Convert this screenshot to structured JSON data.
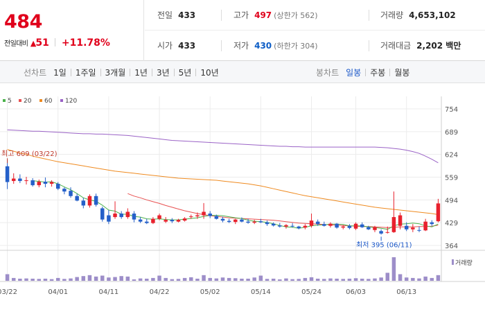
{
  "quote": {
    "price": "484",
    "change_label": "전일대비",
    "change_symbol": "▲",
    "change_value": "51",
    "change_percent": "+11.78%",
    "prev_close_label": "전일",
    "prev_close": "433",
    "high_label": "고가",
    "high": "497",
    "upper_limit": "(상한가 562)",
    "volume_label": "거래량",
    "volume": "4,653,102",
    "open_label": "시가",
    "open": "433",
    "low_label": "저가",
    "low": "430",
    "lower_limit": "(하한가 304)",
    "amount_label": "거래대금",
    "amount": "2,202 백만"
  },
  "tabs": {
    "line_head": "선차트",
    "line_ranges": [
      "1일",
      "1주일",
      "3개월",
      "1년",
      "3년",
      "5년",
      "10년"
    ],
    "candle_head": "봉차트",
    "candle_ranges": [
      "일봉",
      "주봉",
      "월봉"
    ],
    "candle_active": 0
  },
  "colors": {
    "up": "#e8212d",
    "down": "#2560c9",
    "ma5": "#4cb24c",
    "ma20": "#e85050",
    "ma60": "#ef8a1f",
    "ma120": "#9a62c6",
    "volume": "#9d8ec9"
  },
  "chart_data": {
    "type": "candlestick",
    "yticks": [
      "754",
      "689",
      "624",
      "559",
      "494",
      "429",
      "364"
    ],
    "ylim": [
      364,
      754
    ],
    "grid": true,
    "xticks": [
      {
        "label": "03/22",
        "i": 0
      },
      {
        "label": "04/01",
        "i": 8
      },
      {
        "label": "04/11",
        "i": 16
      },
      {
        "label": "04/22",
        "i": 24
      },
      {
        "label": "05/02",
        "i": 32
      },
      {
        "label": "05/14",
        "i": 40
      },
      {
        "label": "05/24",
        "i": 48
      },
      {
        "label": "06/03",
        "i": 55
      },
      {
        "label": "06/13",
        "i": 63
      }
    ],
    "legend": [
      "5",
      "20",
      "60",
      "120"
    ],
    "annotation_high": "최고 609 (03/22)",
    "annotation_low": "최저 395 (06/11)",
    "volume_label": "거래량",
    "candles": [
      [
        590,
        609,
        525,
        545
      ],
      [
        548,
        570,
        540,
        555
      ],
      [
        555,
        567,
        542,
        548
      ],
      [
        548,
        560,
        538,
        550
      ],
      [
        550,
        556,
        532,
        536
      ],
      [
        536,
        552,
        530,
        546
      ],
      [
        546,
        558,
        530,
        540
      ],
      [
        540,
        550,
        532,
        545
      ],
      [
        540,
        545,
        522,
        526
      ],
      [
        526,
        530,
        510,
        518
      ],
      [
        520,
        530,
        500,
        505
      ],
      [
        505,
        512,
        490,
        492
      ],
      [
        492,
        500,
        470,
        478
      ],
      [
        478,
        510,
        472,
        505
      ],
      [
        505,
        512,
        475,
        480
      ],
      [
        470,
        475,
        432,
        438
      ],
      [
        450,
        465,
        425,
        432
      ],
      [
        445,
        490,
        440,
        455
      ],
      [
        455,
        462,
        440,
        445
      ],
      [
        445,
        470,
        440,
        460
      ],
      [
        455,
        462,
        430,
        438
      ],
      [
        438,
        445,
        428,
        432
      ],
      [
        432,
        440,
        425,
        428
      ],
      [
        428,
        445,
        425,
        440
      ],
      [
        440,
        455,
        436,
        450
      ],
      [
        432,
        445,
        428,
        437
      ],
      [
        437,
        442,
        428,
        433
      ],
      [
        432,
        440,
        430,
        437
      ],
      [
        435,
        445,
        432,
        441
      ],
      [
        445,
        452,
        440,
        447
      ],
      [
        447,
        458,
        440,
        450
      ],
      [
        450,
        485,
        440,
        460
      ],
      [
        455,
        462,
        442,
        448
      ],
      [
        448,
        452,
        438,
        440
      ],
      [
        440,
        446,
        430,
        435
      ],
      [
        434,
        440,
        428,
        431
      ],
      [
        431,
        440,
        425,
        438
      ],
      [
        438,
        444,
        430,
        432
      ],
      [
        432,
        440,
        426,
        429
      ],
      [
        429,
        437,
        425,
        432
      ],
      [
        433,
        440,
        428,
        430
      ],
      [
        430,
        435,
        420,
        425
      ],
      [
        426,
        430,
        418,
        421
      ],
      [
        421,
        428,
        415,
        418
      ],
      [
        418,
        425,
        412,
        422
      ],
      [
        420,
        428,
        415,
        418
      ],
      [
        418,
        420,
        410,
        413
      ],
      [
        415,
        425,
        410,
        420
      ],
      [
        420,
        455,
        415,
        435
      ],
      [
        432,
        438,
        420,
        425
      ],
      [
        425,
        432,
        418,
        420
      ],
      [
        420,
        430,
        415,
        426
      ],
      [
        426,
        428,
        412,
        415
      ],
      [
        415,
        422,
        410,
        418
      ],
      [
        420,
        425,
        410,
        414
      ],
      [
        412,
        430,
        408,
        426
      ],
      [
        424,
        430,
        414,
        416
      ],
      [
        416,
        420,
        408,
        410
      ],
      [
        408,
        420,
        402,
        416
      ],
      [
        405,
        410,
        395,
        398
      ],
      [
        400,
        418,
        398,
        402
      ],
      [
        402,
        518,
        400,
        445
      ],
      [
        420,
        458,
        410,
        450
      ],
      [
        420,
        430,
        405,
        410
      ],
      [
        410,
        425,
        402,
        415
      ],
      [
        408,
        418,
        402,
        406
      ],
      [
        407,
        440,
        405,
        432
      ],
      [
        430,
        436,
        420,
        425
      ],
      [
        433,
        497,
        430,
        484
      ]
    ],
    "volumes": [
      28,
      12,
      9,
      10,
      9,
      8,
      9,
      7,
      12,
      8,
      10,
      16,
      20,
      24,
      18,
      22,
      14,
      16,
      20,
      18,
      6,
      10,
      9,
      12,
      22,
      12,
      7,
      8,
      12,
      15,
      9,
      24,
      12,
      10,
      14,
      12,
      11,
      9,
      9,
      14,
      22,
      8,
      9,
      6,
      10,
      7,
      8,
      12,
      15,
      9,
      8,
      10,
      9,
      8,
      9,
      11,
      9,
      8,
      10,
      14,
      34,
      100,
      28,
      14,
      12,
      10,
      18,
      12,
      24
    ],
    "ma5": [
      null,
      null,
      null,
      null,
      549,
      547,
      545,
      546,
      540,
      531,
      523,
      512,
      500,
      494,
      490,
      479,
      465,
      462,
      453,
      453,
      447,
      445,
      440,
      439,
      440,
      438,
      437,
      437,
      439,
      441,
      443,
      447,
      450,
      450,
      449,
      446,
      443,
      441,
      436,
      433,
      432,
      430,
      426,
      421,
      417,
      416,
      413,
      416,
      420,
      422,
      423,
      425,
      425,
      424,
      420,
      420,
      420,
      417,
      415,
      413,
      410,
      420,
      425,
      426,
      428,
      426,
      420,
      417,
      425
    ],
    "ma20": [
      null,
      null,
      null,
      null,
      null,
      null,
      null,
      null,
      null,
      null,
      null,
      null,
      null,
      null,
      null,
      null,
      null,
      null,
      null,
      512,
      505,
      500,
      494,
      489,
      484,
      478,
      473,
      468,
      463,
      459,
      455,
      452,
      449,
      447,
      445,
      443,
      442,
      441,
      440,
      439,
      438,
      437,
      436,
      434,
      432,
      430,
      428,
      427,
      426,
      425,
      424,
      423,
      422,
      421,
      420,
      419,
      418,
      418,
      417,
      416,
      415,
      416,
      417,
      417,
      417,
      418,
      418,
      419,
      422
    ],
    "ma60": [
      638,
      633,
      628,
      624,
      619,
      615,
      611,
      607,
      603,
      600,
      597,
      594,
      591,
      588,
      585,
      582,
      579,
      576,
      574,
      572,
      570,
      568,
      566,
      564,
      562,
      560,
      558,
      556,
      555,
      554,
      553,
      552,
      551,
      550,
      548,
      546,
      544,
      542,
      540,
      537,
      534,
      530,
      526,
      522,
      518,
      514,
      510,
      506,
      503,
      500,
      497,
      494,
      491,
      488,
      485,
      482,
      479,
      476,
      473,
      471,
      469,
      467,
      465,
      463,
      461,
      459,
      457,
      455,
      452
    ],
    "ma120": [
      694,
      693,
      692,
      691,
      690,
      690,
      689,
      688,
      687,
      686,
      685,
      684,
      683,
      683,
      682,
      682,
      681,
      680,
      679,
      678,
      676,
      674,
      672,
      670,
      668,
      666,
      664,
      663,
      662,
      661,
      660,
      659,
      658,
      657,
      656,
      655,
      654,
      653,
      652,
      651,
      650,
      649,
      648,
      647,
      647,
      646,
      646,
      645,
      645,
      645,
      645,
      645,
      645,
      645,
      645,
      645,
      645,
      645,
      645,
      644,
      643,
      641,
      639,
      636,
      632,
      627,
      619,
      610,
      600
    ]
  }
}
